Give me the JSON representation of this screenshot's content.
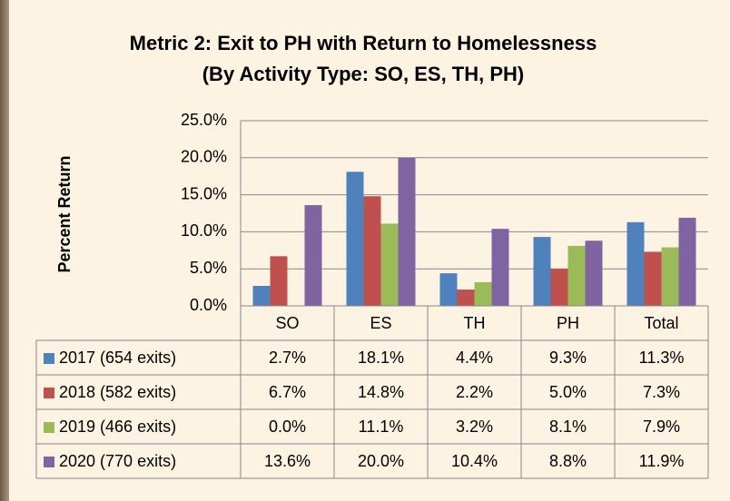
{
  "chart_data": {
    "type": "bar",
    "title": "Metric 2: Exit to PH with Return to Homelessness",
    "subtitle": "(By Activity Type: SO, ES, TH, PH)",
    "y_label": "Percent Return",
    "categories": [
      "SO",
      "ES",
      "TH",
      "PH",
      "Total"
    ],
    "series": [
      {
        "name": "2017 (654 exits)",
        "color": "#4f81bd",
        "values": [
          2.7,
          18.1,
          4.4,
          9.3,
          11.3
        ],
        "value_labels": [
          "2.7%",
          "18.1%",
          "4.4%",
          "9.3%",
          "11.3%"
        ]
      },
      {
        "name": "2018 (582 exits)",
        "color": "#c0504d",
        "values": [
          6.7,
          14.8,
          2.2,
          5.0,
          7.3
        ],
        "value_labels": [
          "6.7%",
          "14.8%",
          "2.2%",
          "5.0%",
          "7.3%"
        ]
      },
      {
        "name": "2019 (466 exits)",
        "color": "#9bbb59",
        "values": [
          0.0,
          11.1,
          3.2,
          8.1,
          7.9
        ],
        "value_labels": [
          "0.0%",
          "11.1%",
          "3.2%",
          "8.1%",
          "7.9%"
        ]
      },
      {
        "name": "2020 (770 exits)",
        "color": "#8064a2",
        "values": [
          13.6,
          20.0,
          10.4,
          8.8,
          11.9
        ],
        "value_labels": [
          "13.6%",
          "20.0%",
          "10.4%",
          "8.8%",
          "11.9%"
        ]
      }
    ],
    "ylim": [
      0,
      25
    ],
    "yticks": [
      {
        "value": 0,
        "label": "0.0%"
      },
      {
        "value": 5,
        "label": "5.0%"
      },
      {
        "value": 10,
        "label": "10.0%"
      },
      {
        "value": 15,
        "label": "15.0%"
      },
      {
        "value": 20,
        "label": "20.0%"
      },
      {
        "value": 25,
        "label": "25.0%"
      }
    ],
    "grid": true
  }
}
